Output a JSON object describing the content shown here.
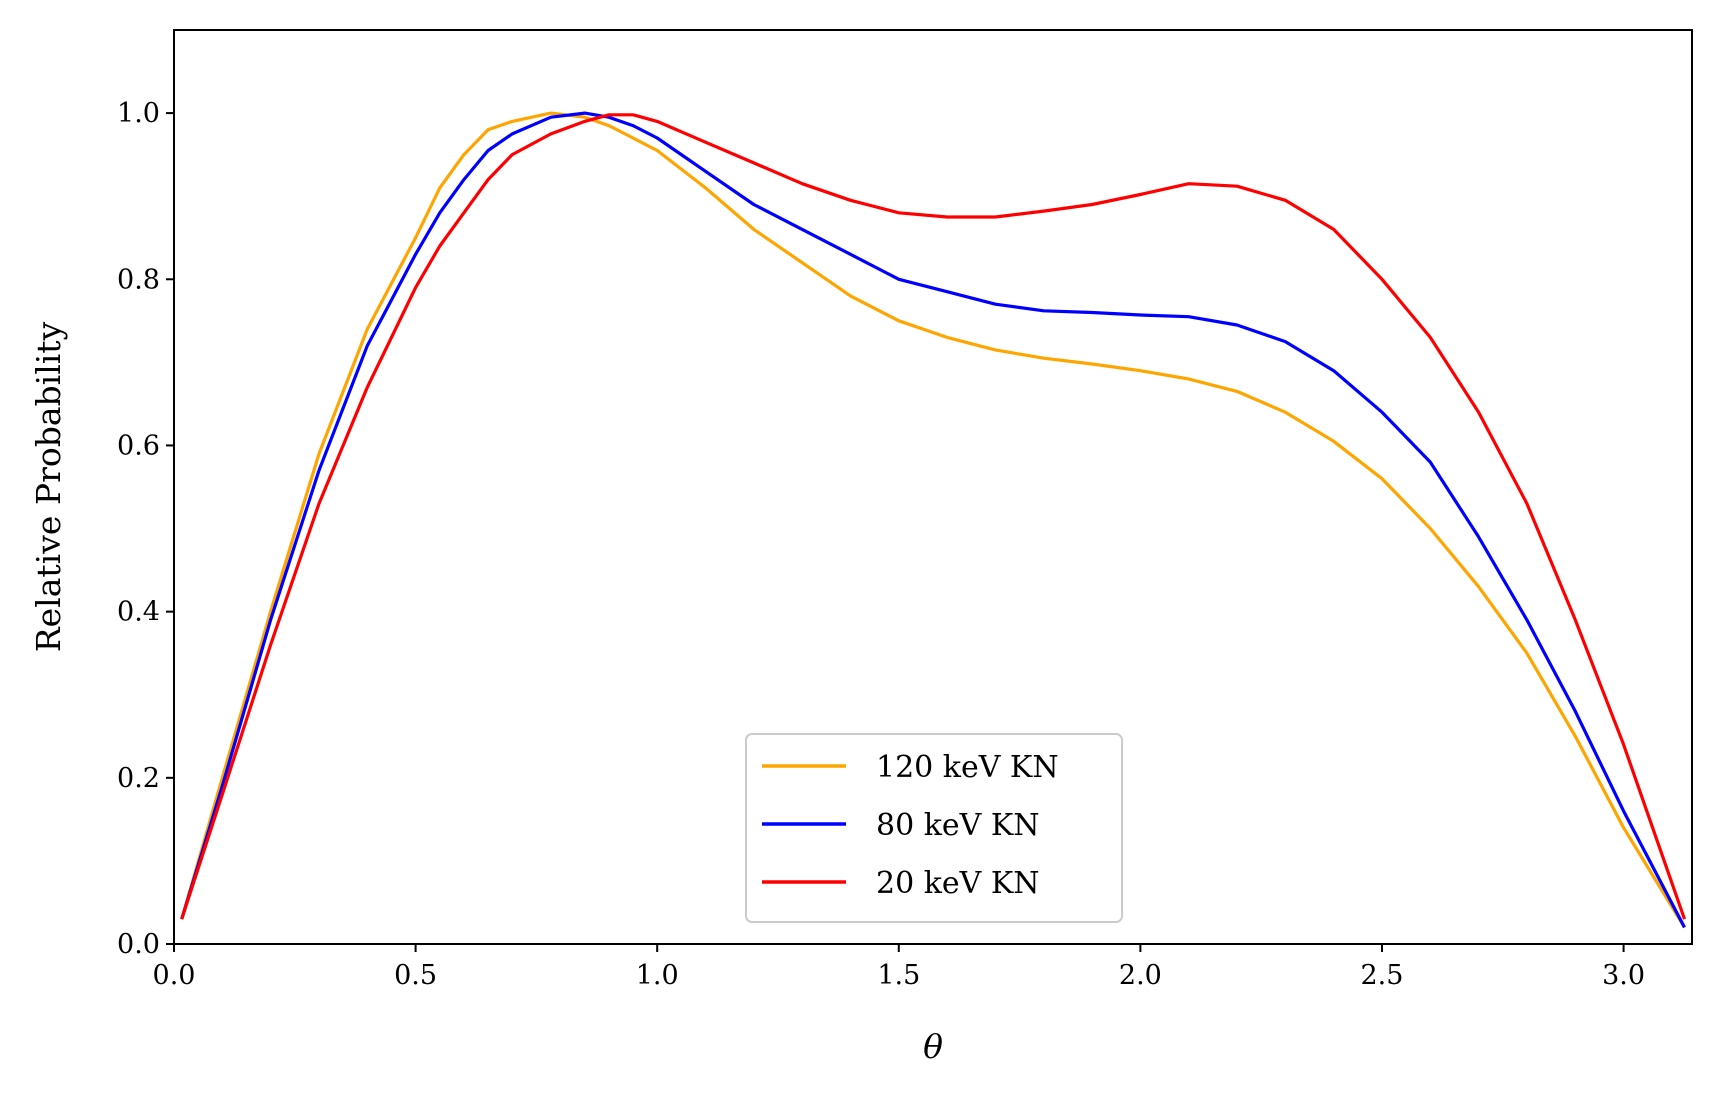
{
  "chart_data": {
    "type": "line",
    "title": "",
    "xlabel": "θ",
    "ylabel": "Relative Probability",
    "xlim": [
      0.0,
      3.1416
    ],
    "ylim": [
      0.0,
      1.1
    ],
    "xticks": [
      0.0,
      0.5,
      1.0,
      1.5,
      2.0,
      2.5,
      3.0
    ],
    "xtick_labels": [
      "0.0",
      "0.5",
      "1.0",
      "1.5",
      "2.0",
      "2.5",
      "3.0"
    ],
    "yticks": [
      0.0,
      0.2,
      0.4,
      0.6,
      0.8,
      1.0
    ],
    "ytick_labels": [
      "0.0",
      "0.2",
      "0.4",
      "0.6",
      "0.8",
      "1.0"
    ],
    "grid": false,
    "legend_position": "bottom-center",
    "series": [
      {
        "name": "120 keV KN",
        "color": "#ffa500",
        "x": [
          0.016,
          0.1,
          0.2,
          0.3,
          0.4,
          0.5,
          0.55,
          0.6,
          0.65,
          0.7,
          0.78,
          0.85,
          0.9,
          0.95,
          1.0,
          1.1,
          1.2,
          1.3,
          1.4,
          1.5,
          1.6,
          1.7,
          1.8,
          1.9,
          2.0,
          2.1,
          2.2,
          2.3,
          2.4,
          2.5,
          2.6,
          2.7,
          2.8,
          2.9,
          3.0,
          3.126
        ],
        "y": [
          0.03,
          0.2,
          0.4,
          0.59,
          0.74,
          0.85,
          0.91,
          0.95,
          0.98,
          0.99,
          1.0,
          0.995,
          0.985,
          0.97,
          0.955,
          0.91,
          0.86,
          0.82,
          0.78,
          0.75,
          0.73,
          0.715,
          0.705,
          0.698,
          0.69,
          0.68,
          0.665,
          0.64,
          0.605,
          0.56,
          0.5,
          0.43,
          0.35,
          0.25,
          0.14,
          0.02
        ]
      },
      {
        "name": "80 keV KN",
        "color": "#0000ff",
        "x": [
          0.016,
          0.1,
          0.2,
          0.3,
          0.4,
          0.5,
          0.55,
          0.6,
          0.65,
          0.7,
          0.78,
          0.85,
          0.9,
          0.95,
          1.0,
          1.1,
          1.2,
          1.3,
          1.4,
          1.5,
          1.6,
          1.7,
          1.8,
          1.9,
          2.0,
          2.1,
          2.2,
          2.3,
          2.4,
          2.5,
          2.6,
          2.7,
          2.8,
          2.9,
          3.0,
          3.126
        ],
        "y": [
          0.03,
          0.19,
          0.39,
          0.57,
          0.72,
          0.83,
          0.88,
          0.92,
          0.955,
          0.975,
          0.995,
          1.0,
          0.995,
          0.985,
          0.97,
          0.93,
          0.89,
          0.86,
          0.83,
          0.8,
          0.785,
          0.77,
          0.762,
          0.76,
          0.757,
          0.755,
          0.745,
          0.725,
          0.69,
          0.64,
          0.58,
          0.49,
          0.39,
          0.28,
          0.16,
          0.02
        ]
      },
      {
        "name": "20 keV KN",
        "color": "#ff0000",
        "x": [
          0.016,
          0.1,
          0.2,
          0.3,
          0.4,
          0.5,
          0.55,
          0.6,
          0.65,
          0.7,
          0.78,
          0.85,
          0.9,
          0.95,
          1.0,
          1.1,
          1.2,
          1.3,
          1.4,
          1.5,
          1.6,
          1.7,
          1.8,
          1.9,
          2.0,
          2.1,
          2.2,
          2.3,
          2.4,
          2.5,
          2.6,
          2.7,
          2.8,
          2.9,
          3.0,
          3.126
        ],
        "y": [
          0.03,
          0.18,
          0.36,
          0.53,
          0.67,
          0.79,
          0.84,
          0.88,
          0.92,
          0.95,
          0.975,
          0.99,
          0.998,
          0.998,
          0.99,
          0.965,
          0.94,
          0.915,
          0.895,
          0.88,
          0.875,
          0.875,
          0.882,
          0.89,
          0.902,
          0.915,
          0.912,
          0.895,
          0.86,
          0.8,
          0.73,
          0.64,
          0.53,
          0.39,
          0.24,
          0.03
        ]
      }
    ]
  }
}
